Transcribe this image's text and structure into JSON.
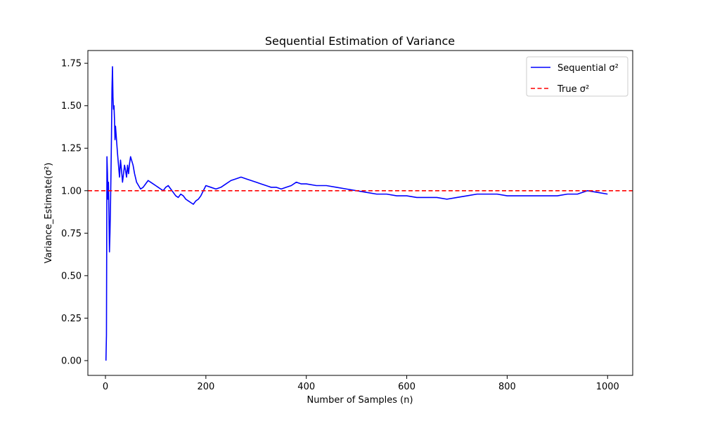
{
  "chart_data": {
    "type": "line",
    "title": "Sequential Estimation of Variance",
    "xlabel": "Number of Samples (n)",
    "ylabel": "Variance_Estimate(σ²)",
    "xlim": [
      -35,
      1050
    ],
    "ylim": [
      -0.087,
      1.825
    ],
    "x_ticks": [
      0,
      200,
      400,
      600,
      800,
      1000
    ],
    "x_tick_labels": [
      "0",
      "200",
      "400",
      "600",
      "800",
      "1000"
    ],
    "y_ticks": [
      0.0,
      0.25,
      0.5,
      0.75,
      1.0,
      1.25,
      1.5,
      1.75
    ],
    "y_tick_labels": [
      "0.00",
      "0.25",
      "0.50",
      "0.75",
      "1.00",
      "1.25",
      "1.50",
      "1.75"
    ],
    "grid": false,
    "legend_position": "top-right",
    "series": [
      {
        "name": "Sequential σ²",
        "color": "#0000ff",
        "style": "solid",
        "x": [
          1,
          2,
          3,
          4,
          5,
          6,
          7,
          8,
          9,
          10,
          11,
          12,
          13,
          14,
          15,
          16,
          17,
          18,
          19,
          20,
          22,
          24,
          26,
          28,
          30,
          32,
          34,
          36,
          38,
          40,
          42,
          44,
          46,
          48,
          50,
          52,
          55,
          58,
          62,
          66,
          70,
          75,
          80,
          85,
          90,
          95,
          100,
          105,
          110,
          115,
          120,
          125,
          130,
          135,
          140,
          145,
          150,
          155,
          160,
          165,
          170,
          175,
          180,
          185,
          190,
          195,
          200,
          210,
          220,
          230,
          240,
          250,
          260,
          270,
          280,
          290,
          300,
          310,
          320,
          330,
          340,
          350,
          360,
          370,
          380,
          390,
          400,
          420,
          440,
          460,
          480,
          500,
          520,
          540,
          560,
          580,
          600,
          620,
          640,
          660,
          680,
          700,
          720,
          740,
          760,
          780,
          800,
          820,
          840,
          860,
          880,
          900,
          920,
          940,
          960,
          980,
          1000
        ],
        "y": [
          0.0,
          0.15,
          1.2,
          1.1,
          0.95,
          1.05,
          0.85,
          0.64,
          0.75,
          0.9,
          1.1,
          1.32,
          1.6,
          1.73,
          1.55,
          1.48,
          1.5,
          1.42,
          1.3,
          1.38,
          1.3,
          1.22,
          1.15,
          1.08,
          1.18,
          1.12,
          1.05,
          1.1,
          1.15,
          1.12,
          1.08,
          1.15,
          1.1,
          1.16,
          1.2,
          1.18,
          1.15,
          1.1,
          1.05,
          1.03,
          1.01,
          1.02,
          1.04,
          1.06,
          1.05,
          1.04,
          1.03,
          1.02,
          1.01,
          1.0,
          1.02,
          1.03,
          1.01,
          0.99,
          0.97,
          0.96,
          0.98,
          0.97,
          0.95,
          0.94,
          0.93,
          0.92,
          0.94,
          0.95,
          0.97,
          1.0,
          1.03,
          1.02,
          1.01,
          1.02,
          1.04,
          1.06,
          1.07,
          1.08,
          1.07,
          1.06,
          1.05,
          1.04,
          1.03,
          1.02,
          1.02,
          1.01,
          1.02,
          1.03,
          1.05,
          1.04,
          1.04,
          1.03,
          1.03,
          1.02,
          1.01,
          1.0,
          0.99,
          0.98,
          0.98,
          0.97,
          0.97,
          0.96,
          0.96,
          0.96,
          0.95,
          0.96,
          0.97,
          0.98,
          0.98,
          0.98,
          0.97,
          0.97,
          0.97,
          0.97,
          0.97,
          0.97,
          0.98,
          0.98,
          1.0,
          0.99,
          0.98
        ]
      },
      {
        "name": "True σ²",
        "color": "#ff0000",
        "style": "dashed",
        "x": [
          -35,
          1050
        ],
        "y": [
          1.0,
          1.0
        ]
      }
    ]
  }
}
